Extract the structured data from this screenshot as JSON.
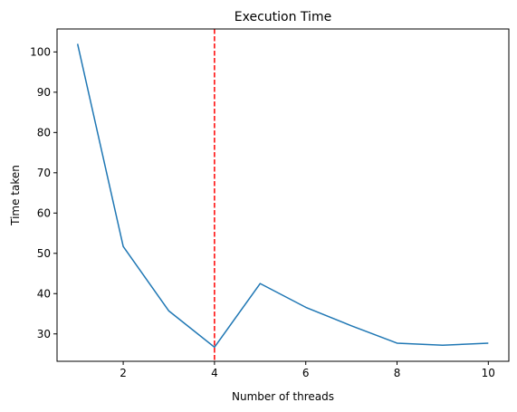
{
  "chart_data": {
    "type": "line",
    "title": "Execution Time",
    "xlabel": "Number of threads",
    "ylabel": "Time taken",
    "xlim": [
      0.55,
      10.45
    ],
    "ylim": [
      23.2,
      105.7
    ],
    "x_ticks": [
      2,
      4,
      6,
      8,
      10
    ],
    "y_ticks": [
      30,
      40,
      50,
      60,
      70,
      80,
      90,
      100
    ],
    "grid": false,
    "legend": "none",
    "series": [
      {
        "color": "#1f77b4",
        "x": [
          1,
          2,
          3,
          4,
          5,
          6,
          7,
          8,
          9,
          10
        ],
        "values": [
          102.0,
          51.7,
          35.7,
          26.7,
          42.5,
          36.6,
          32.0,
          27.7,
          27.2,
          27.7
        ]
      }
    ],
    "vertical_line": {
      "x": 4,
      "color": "#ff0000",
      "style": "dashed"
    }
  }
}
